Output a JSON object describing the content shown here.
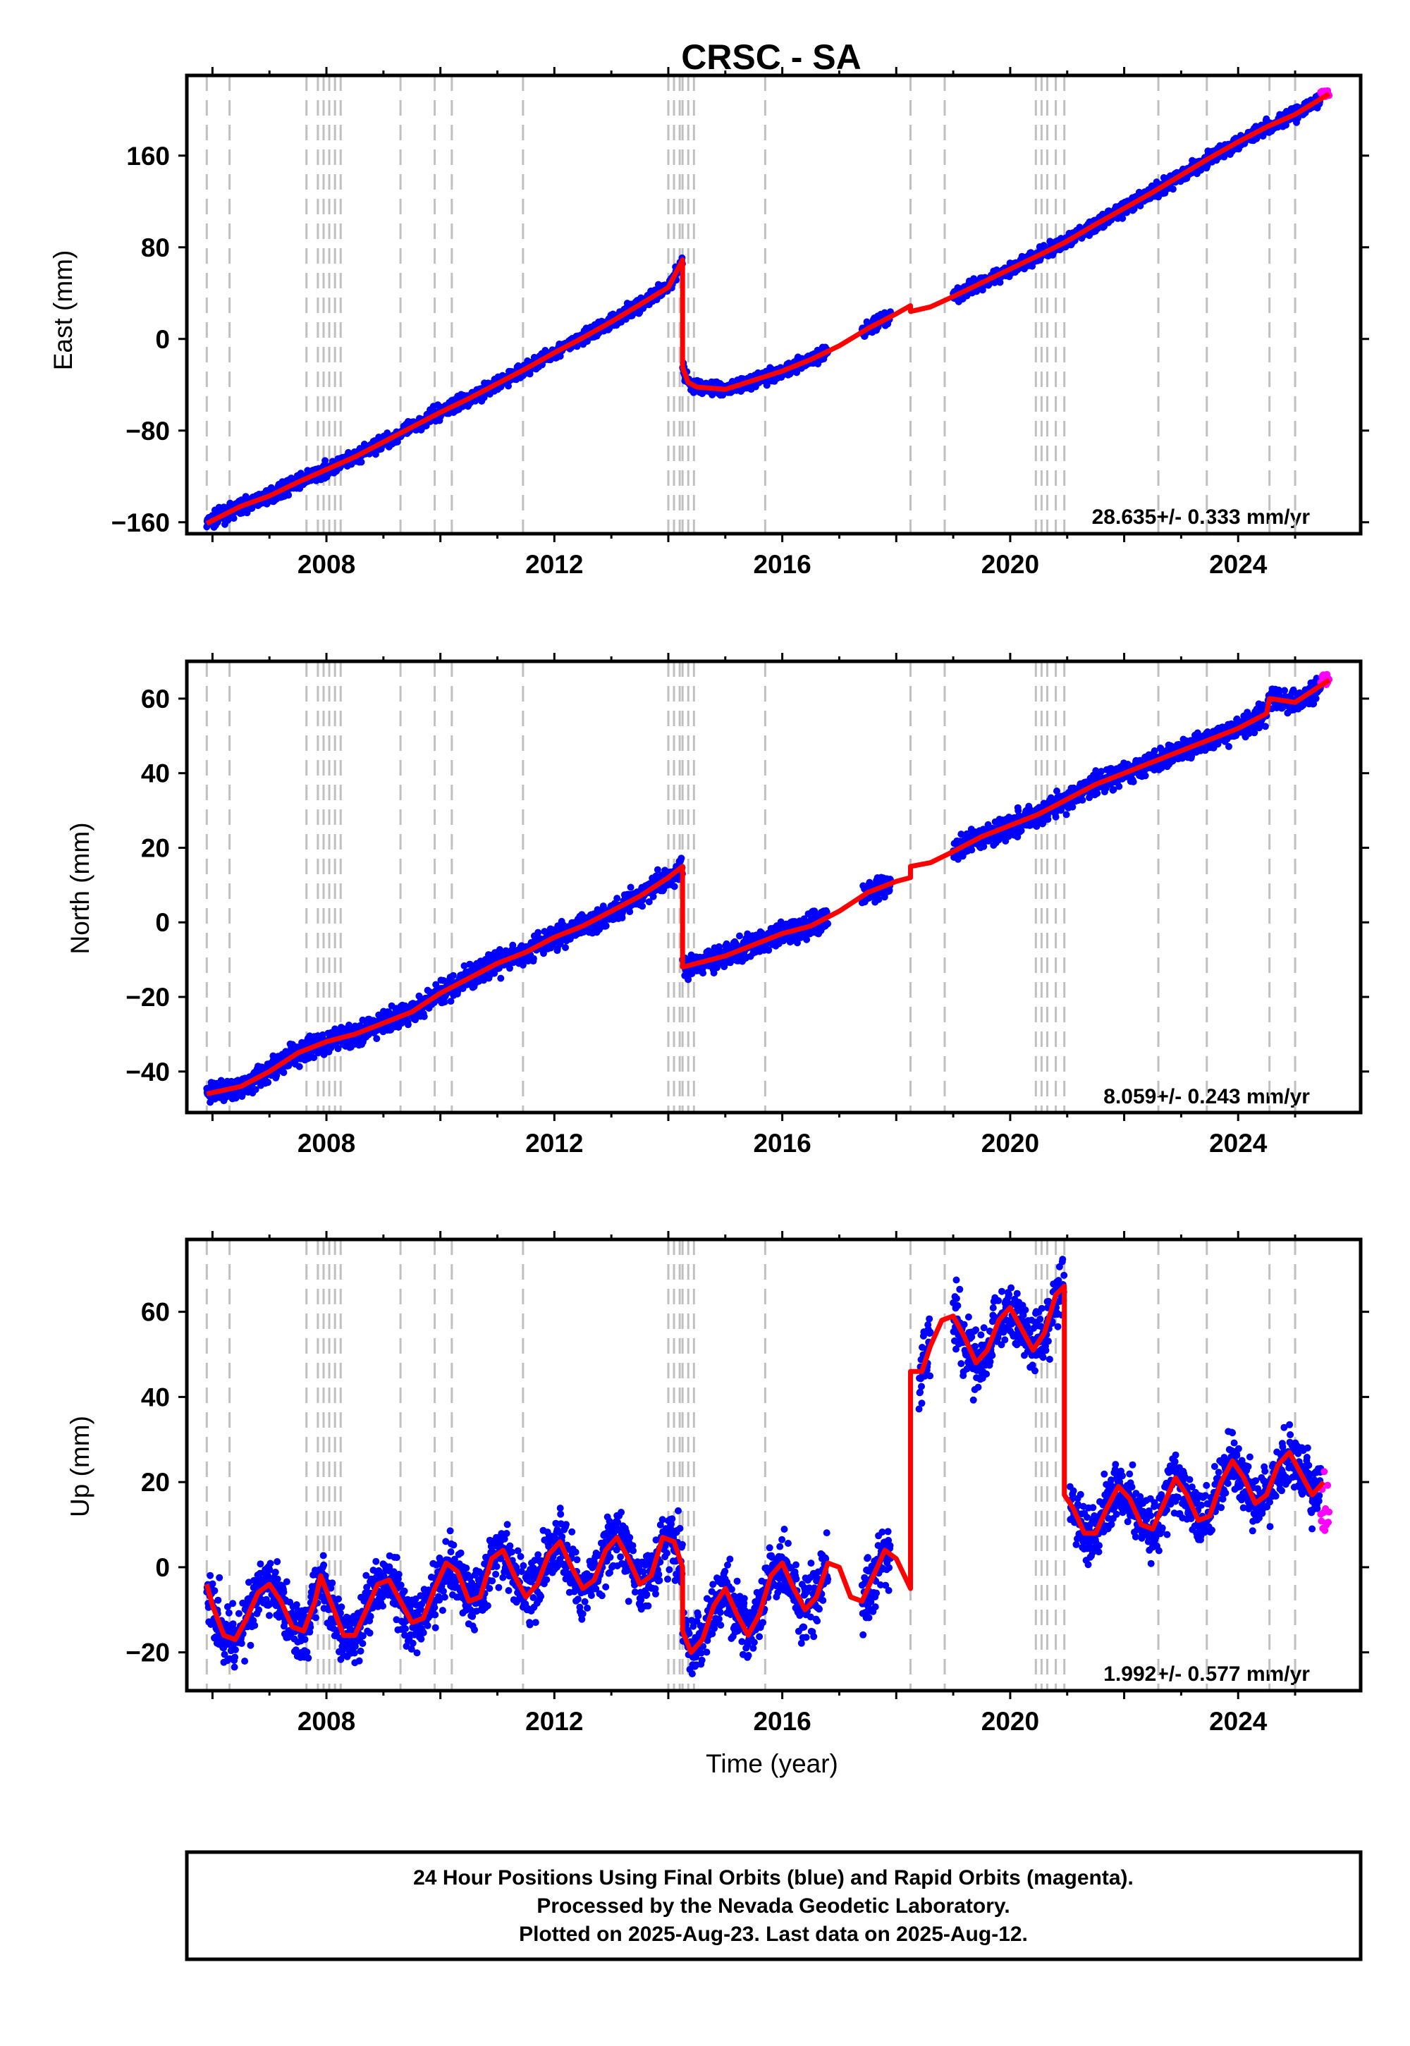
{
  "chart_data": {
    "type": "scatter",
    "title": "CRSC - SA",
    "xlabel": "Time (year)",
    "x_ticks": [
      2008,
      2012,
      2016,
      2020,
      2024
    ],
    "xlim": [
      2005.55,
      2026.15
    ],
    "colors": {
      "final_orbits": "#0000ff",
      "rapid_orbits": "#ff00ff",
      "model": "#ff0000",
      "event_lines": "#c0c0c0"
    },
    "events": [
      2005.9,
      2006.3,
      2007.65,
      2007.85,
      2007.95,
      2008.05,
      2008.15,
      2008.25,
      2009.3,
      2009.9,
      2010.2,
      2011.45,
      2014.0,
      2014.1,
      2014.2,
      2014.25,
      2014.35,
      2014.45,
      2015.7,
      2018.25,
      2018.85,
      2020.45,
      2020.55,
      2020.65,
      2020.8,
      2020.95,
      2022.6,
      2023.45,
      2024.55,
      2025.0
    ],
    "panels": [
      {
        "ylabel": "East (mm)",
        "ylim": [
          -170,
          230
        ],
        "y_ticks": [
          -160,
          -80,
          0,
          80,
          160
        ],
        "rate_label": "28.635+/- 0.333 mm/yr",
        "model_segments": [
          [
            [
              2005.9,
              -161
            ],
            [
              2006.5,
              -146
            ],
            [
              2007,
              -137
            ],
            [
              2007.5,
              -125
            ],
            [
              2008,
              -114
            ],
            [
              2008.5,
              -103
            ],
            [
              2009,
              -90
            ],
            [
              2009.5,
              -77
            ],
            [
              2010,
              -64
            ],
            [
              2010.5,
              -52
            ],
            [
              2011,
              -39
            ],
            [
              2011.5,
              -26
            ],
            [
              2012,
              -12
            ],
            [
              2012.5,
              1
            ],
            [
              2013,
              15
            ],
            [
              2013.5,
              30
            ],
            [
              2014,
              45
            ],
            [
              2014.25,
              69
            ]
          ],
          [
            [
              2014.25,
              -25
            ],
            [
              2014.35,
              -38
            ],
            [
              2014.5,
              -42
            ],
            [
              2015,
              -44
            ],
            [
              2015.5,
              -36
            ],
            [
              2016,
              -28
            ],
            [
              2016.5,
              -18
            ],
            [
              2017,
              -6
            ],
            [
              2017.5,
              9
            ],
            [
              2018,
              22
            ],
            [
              2018.25,
              29
            ]
          ],
          [
            [
              2018.25,
              24
            ],
            [
              2018.6,
              28
            ],
            [
              2019,
              37
            ],
            [
              2019.5,
              49
            ],
            [
              2020,
              61
            ],
            [
              2020.5,
              73
            ],
            [
              2020.95,
              84
            ],
            [
              2021.5,
              100
            ],
            [
              2022,
              114
            ],
            [
              2022.5,
              128
            ],
            [
              2023,
              143
            ],
            [
              2023.5,
              158
            ],
            [
              2024,
              172
            ],
            [
              2024.5,
              185
            ],
            [
              2025,
              196
            ],
            [
              2025.6,
              214
            ]
          ]
        ],
        "final_segments": [
          [
            2005.9,
            2014.5
          ],
          [
            2014.5,
            2016.8
          ],
          [
            2017.4,
            2017.9
          ],
          [
            2019.0,
            2025.45
          ]
        ],
        "rapid_range": [
          2025.45,
          2025.6
        ],
        "noise": 3.0
      },
      {
        "ylabel": "North (mm)",
        "ylim": [
          -51,
          70
        ],
        "y_ticks": [
          -40,
          -20,
          0,
          20,
          40,
          60
        ],
        "rate_label": "8.059+/- 0.243 mm/yr",
        "model_segments": [
          [
            [
              2005.9,
              -46
            ],
            [
              2006.5,
              -44
            ],
            [
              2007,
              -40
            ],
            [
              2007.5,
              -35
            ],
            [
              2008,
              -32
            ],
            [
              2008.5,
              -30
            ],
            [
              2009,
              -27
            ],
            [
              2009.5,
              -24
            ],
            [
              2010,
              -19
            ],
            [
              2010.5,
              -15
            ],
            [
              2011,
              -11
            ],
            [
              2011.5,
              -8
            ],
            [
              2012,
              -4
            ],
            [
              2012.5,
              -1
            ],
            [
              2013,
              3
            ],
            [
              2013.5,
              7
            ],
            [
              2014,
              12
            ],
            [
              2014.25,
              15
            ]
          ],
          [
            [
              2014.25,
              -12
            ],
            [
              2014.5,
              -11
            ],
            [
              2015,
              -9
            ],
            [
              2015.5,
              -6
            ],
            [
              2016,
              -3
            ],
            [
              2016.5,
              -1
            ],
            [
              2017,
              3
            ],
            [
              2017.5,
              8
            ],
            [
              2018,
              11
            ],
            [
              2018.25,
              12
            ]
          ],
          [
            [
              2018.25,
              15
            ],
            [
              2018.6,
              16
            ],
            [
              2019,
              19
            ],
            [
              2019.5,
              23
            ],
            [
              2020,
              26
            ],
            [
              2020.5,
              29
            ],
            [
              2021,
              33
            ],
            [
              2021.5,
              37
            ],
            [
              2022,
              40
            ],
            [
              2022.5,
              43
            ],
            [
              2023,
              46
            ],
            [
              2023.5,
              49
            ],
            [
              2024,
              52
            ],
            [
              2024.5,
              56
            ],
            [
              2024.55,
              60
            ],
            [
              2025,
              59
            ],
            [
              2025.6,
              65
            ]
          ]
        ],
        "final_segments": [
          [
            2005.9,
            2014.5
          ],
          [
            2014.5,
            2016.8
          ],
          [
            2017.4,
            2017.9
          ],
          [
            2019.0,
            2025.45
          ]
        ],
        "rapid_range": [
          2025.45,
          2025.6
        ],
        "noise": 1.5
      },
      {
        "ylabel": "Up (mm)",
        "ylim": [
          -29,
          77
        ],
        "y_ticks": [
          -20,
          0,
          20,
          40,
          60
        ],
        "rate_label": "1.992+/- 0.577 mm/yr",
        "model_segments": [
          [
            [
              2005.9,
              -4
            ],
            [
              2006.0,
              -9
            ],
            [
              2006.2,
              -16
            ],
            [
              2006.4,
              -17
            ],
            [
              2006.6,
              -12
            ],
            [
              2006.8,
              -6
            ],
            [
              2007.0,
              -4
            ],
            [
              2007.2,
              -8
            ],
            [
              2007.4,
              -14
            ],
            [
              2007.6,
              -15
            ],
            [
              2007.8,
              -8
            ],
            [
              2007.9,
              -2
            ],
            [
              2008.1,
              -9
            ],
            [
              2008.3,
              -16
            ],
            [
              2008.5,
              -16
            ],
            [
              2008.7,
              -10
            ],
            [
              2008.9,
              -4
            ],
            [
              2009.1,
              -3
            ],
            [
              2009.3,
              -8
            ],
            [
              2009.5,
              -13
            ],
            [
              2009.7,
              -12
            ],
            [
              2009.9,
              -5
            ],
            [
              2010.1,
              1
            ],
            [
              2010.3,
              -1
            ],
            [
              2010.5,
              -8
            ],
            [
              2010.7,
              -7
            ],
            [
              2010.9,
              2
            ],
            [
              2011.1,
              4
            ],
            [
              2011.3,
              -2
            ],
            [
              2011.5,
              -7
            ],
            [
              2011.7,
              -4
            ],
            [
              2011.9,
              3
            ],
            [
              2012.1,
              6
            ],
            [
              2012.3,
              0
            ],
            [
              2012.5,
              -5
            ],
            [
              2012.7,
              -3
            ],
            [
              2012.9,
              4
            ],
            [
              2013.1,
              7
            ],
            [
              2013.3,
              2
            ],
            [
              2013.5,
              -4
            ],
            [
              2013.7,
              -2
            ],
            [
              2013.9,
              7
            ],
            [
              2014.1,
              6
            ],
            [
              2014.25,
              0
            ]
          ],
          [
            [
              2014.25,
              -15
            ],
            [
              2014.4,
              -20
            ],
            [
              2014.6,
              -17
            ],
            [
              2014.8,
              -9
            ],
            [
              2015.0,
              -5
            ],
            [
              2015.2,
              -11
            ],
            [
              2015.4,
              -16
            ],
            [
              2015.6,
              -11
            ],
            [
              2015.8,
              -2
            ],
            [
              2016.0,
              1
            ],
            [
              2016.2,
              -5
            ],
            [
              2016.4,
              -10
            ],
            [
              2016.6,
              -7
            ],
            [
              2016.8,
              1
            ],
            [
              2017.0,
              0
            ],
            [
              2017.2,
              -7
            ],
            [
              2017.4,
              -8
            ],
            [
              2017.6,
              -2
            ],
            [
              2017.8,
              4
            ],
            [
              2018.0,
              2
            ],
            [
              2018.25,
              -5
            ]
          ],
          [
            [
              2018.25,
              46
            ],
            [
              2018.45,
              46
            ],
            [
              2018.6,
              52
            ],
            [
              2018.8,
              58
            ],
            [
              2019.0,
              59
            ],
            [
              2019.2,
              54
            ],
            [
              2019.4,
              48
            ],
            [
              2019.6,
              51
            ],
            [
              2019.8,
              58
            ],
            [
              2020.0,
              61
            ],
            [
              2020.2,
              56
            ],
            [
              2020.4,
              51
            ],
            [
              2020.6,
              55
            ],
            [
              2020.8,
              64
            ],
            [
              2020.95,
              66
            ]
          ],
          [
            [
              2020.95,
              17
            ],
            [
              2021.1,
              14
            ],
            [
              2021.3,
              8
            ],
            [
              2021.5,
              8
            ],
            [
              2021.7,
              14
            ],
            [
              2021.9,
              19
            ],
            [
              2022.1,
              16
            ],
            [
              2022.3,
              10
            ],
            [
              2022.5,
              9
            ],
            [
              2022.7,
              15
            ],
            [
              2022.9,
              21
            ],
            [
              2023.1,
              17
            ],
            [
              2023.3,
              11
            ],
            [
              2023.5,
              12
            ],
            [
              2023.7,
              20
            ],
            [
              2023.9,
              25
            ],
            [
              2024.1,
              21
            ],
            [
              2024.3,
              15
            ],
            [
              2024.5,
              17
            ],
            [
              2024.7,
              24
            ],
            [
              2024.9,
              27
            ],
            [
              2025.1,
              22
            ],
            [
              2025.3,
              17
            ],
            [
              2025.5,
              20
            ]
          ]
        ],
        "final_segments": [
          [
            2005.9,
            2014.5
          ],
          [
            2014.5,
            2016.8
          ],
          [
            2017.4,
            2017.9
          ],
          [
            2018.4,
            2018.6
          ],
          [
            2019.0,
            2020.95
          ],
          [
            2021.05,
            2025.45
          ]
        ],
        "rapid_range": [
          2025.45,
          2025.6
        ],
        "noise": 3.5
      }
    ],
    "footer_lines": [
      "24 Hour Positions Using Final Orbits (blue) and Rapid Orbits (magenta).",
      "Processed by the Nevada Geodetic Laboratory.",
      "Plotted on 2025-Aug-23. Last data on 2025-Aug-12."
    ]
  }
}
